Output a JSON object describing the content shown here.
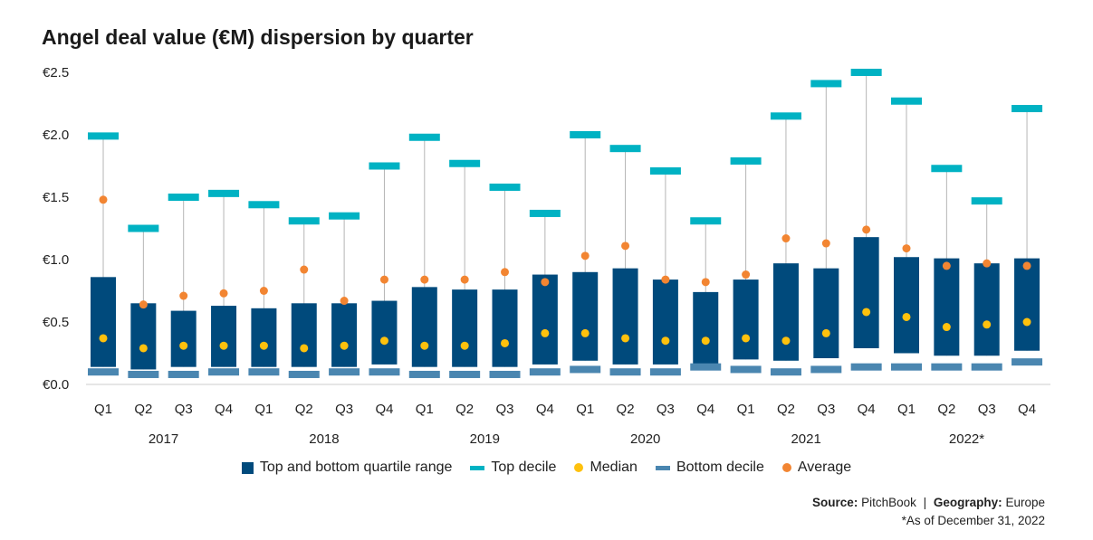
{
  "title": "Angel deal value (€M) dispersion by quarter",
  "legend": {
    "quartile_label": "Top and bottom quartile range",
    "top_decile_label": "Top decile",
    "median_label": "Median",
    "bottom_decile_label": "Bottom decile",
    "average_label": "Average"
  },
  "colors": {
    "quartile": "#004a7c",
    "top_decile": "#00b2c3",
    "median": "#fec10d",
    "bottom_decile": "#4a86b0",
    "average": "#f28532",
    "whisker": "#b5b5b5"
  },
  "footer": {
    "source_label": "Source:",
    "source_value": "PitchBook",
    "separator": "|",
    "geo_label": "Geography:",
    "geo_value": "Europe",
    "note": "*As of December 31, 2022"
  },
  "chart_data": {
    "type": "box",
    "title": "Angel deal value (€M) dispersion by quarter",
    "y_ticks": [
      "€0.0",
      "€0.5",
      "€1.0",
      "€1.5",
      "€2.0",
      "€2.5"
    ],
    "ylim": [
      0,
      2.5
    ],
    "quarters": [
      "Q1",
      "Q2",
      "Q3",
      "Q4",
      "Q1",
      "Q2",
      "Q3",
      "Q4",
      "Q1",
      "Q2",
      "Q3",
      "Q4",
      "Q1",
      "Q2",
      "Q3",
      "Q4",
      "Q1",
      "Q2",
      "Q3",
      "Q4",
      "Q1",
      "Q2",
      "Q3",
      "Q4"
    ],
    "years": [
      "2017",
      "2018",
      "2019",
      "2020",
      "2021",
      "2022*"
    ],
    "series": {
      "top_decile": [
        1.99,
        1.25,
        1.5,
        1.53,
        1.44,
        1.31,
        1.35,
        1.75,
        1.98,
        1.77,
        1.58,
        1.37,
        2.0,
        1.89,
        1.71,
        1.31,
        1.79,
        2.15,
        2.41,
        2.5,
        2.27,
        1.73,
        1.47,
        2.21
      ],
      "upper_quartile": [
        0.86,
        0.65,
        0.59,
        0.63,
        0.61,
        0.65,
        0.65,
        0.67,
        0.78,
        0.76,
        0.76,
        0.88,
        0.9,
        0.93,
        0.84,
        0.74,
        0.84,
        0.97,
        0.93,
        1.18,
        1.02,
        1.01,
        0.97,
        1.01
      ],
      "lower_quartile": [
        0.14,
        0.12,
        0.14,
        0.14,
        0.14,
        0.14,
        0.14,
        0.16,
        0.14,
        0.14,
        0.14,
        0.16,
        0.19,
        0.16,
        0.16,
        0.16,
        0.2,
        0.19,
        0.21,
        0.29,
        0.25,
        0.23,
        0.23,
        0.27
      ],
      "bottom_decile": [
        0.1,
        0.08,
        0.08,
        0.1,
        0.1,
        0.08,
        0.1,
        0.1,
        0.08,
        0.08,
        0.08,
        0.1,
        0.12,
        0.1,
        0.1,
        0.14,
        0.12,
        0.1,
        0.12,
        0.14,
        0.14,
        0.14,
        0.14,
        0.18
      ],
      "median": [
        0.37,
        0.29,
        0.31,
        0.31,
        0.31,
        0.29,
        0.31,
        0.35,
        0.31,
        0.31,
        0.33,
        0.41,
        0.41,
        0.37,
        0.35,
        0.35,
        0.37,
        0.35,
        0.41,
        0.58,
        0.54,
        0.46,
        0.48,
        0.5
      ],
      "average": [
        1.48,
        0.64,
        0.71,
        0.73,
        0.75,
        0.92,
        0.67,
        0.84,
        0.84,
        0.84,
        0.9,
        0.82,
        1.03,
        1.11,
        0.84,
        0.82,
        0.88,
        1.17,
        1.13,
        1.24,
        1.09,
        0.95,
        0.97,
        0.95
      ]
    }
  }
}
